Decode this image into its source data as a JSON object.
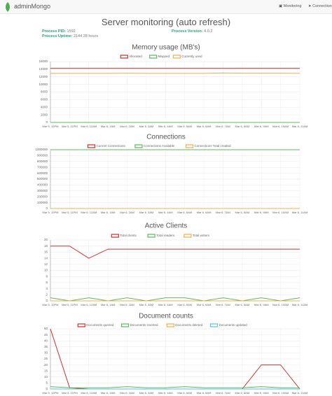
{
  "navbar": {
    "brand": "adminMongo",
    "links": [
      "Monitoring",
      "Connection"
    ]
  },
  "header": {
    "title": "Server monitoring (auto refresh)"
  },
  "process": {
    "pid": {
      "label": "Process PID:",
      "value": "1592"
    },
    "uptime": {
      "label": "Process Uptime:",
      "value": "2144.28 hours"
    },
    "version": {
      "label": "Process Version:",
      "value": "4.0.2"
    }
  },
  "chart_data": [
    {
      "type": "line",
      "title": "Memory usage (MB's)",
      "categories": [
        "Mar 5, 10PM",
        "Mar 5, 11PM",
        "Mar 6, 12AM",
        "Mar 6, 1AM",
        "Mar 6, 2AM",
        "Mar 6, 3AM",
        "Mar 6, 4AM",
        "Mar 6, 5AM",
        "Mar 6, 6AM",
        "Mar 6, 7AM",
        "Mar 6, 8AM",
        "Mar 6, 9AM",
        "Mar 6, 10AM",
        "Mar 6, 11AM"
      ],
      "series": [
        {
          "name": "Allocated",
          "color": "#c9302c",
          "values": [
            14200,
            14200,
            14200,
            14200,
            14200,
            14200,
            14200,
            14200,
            14200,
            14200,
            14200,
            14200,
            14200,
            14200
          ]
        },
        {
          "name": "Mapped",
          "color": "#5cb85c",
          "values": [
            0,
            0,
            0,
            0,
            0,
            0,
            0,
            0,
            0,
            0,
            0,
            0,
            0,
            0
          ]
        },
        {
          "name": "Currently used",
          "color": "#f0ad4e",
          "values": [
            12900,
            12900,
            12900,
            12900,
            12950,
            12900,
            12900,
            12900,
            12900,
            13000,
            12950,
            12950,
            12950,
            12900
          ]
        }
      ],
      "ylim": [
        0,
        16000
      ],
      "yticks": [
        0,
        2000,
        4000,
        6000,
        8000,
        10000,
        12000,
        14000,
        16000
      ],
      "grid": true
    },
    {
      "type": "line",
      "title": "Connections",
      "categories": [
        "Mar 5, 10PM",
        "Mar 5, 11PM",
        "Mar 6, 12AM",
        "Mar 6, 1AM",
        "Mar 6, 2AM",
        "Mar 6, 3AM",
        "Mar 6, 4AM",
        "Mar 6, 5AM",
        "Mar 6, 6AM",
        "Mar 6, 7AM",
        "Mar 6, 8AM",
        "Mar 6, 9AM",
        "Mar 6, 10AM",
        "Mar 6, 11AM"
      ],
      "series": [
        {
          "name": "Current Connections",
          "color": "#c9302c",
          "values": [
            5,
            5,
            5,
            5,
            5,
            5,
            5,
            5,
            5,
            5,
            5,
            5,
            5,
            5
          ]
        },
        {
          "name": "Connections Available",
          "color": "#5cb85c",
          "values": [
            999990,
            999990,
            999990,
            999990,
            999990,
            999990,
            999990,
            999990,
            999990,
            999990,
            999990,
            999990,
            999990,
            999990
          ]
        },
        {
          "name": "Connections Total created",
          "color": "#f0ad4e",
          "values": [
            20,
            20,
            20,
            20,
            20,
            20,
            20,
            20,
            20,
            20,
            20,
            20,
            20,
            20
          ]
        }
      ],
      "ylim": [
        0,
        1000000
      ],
      "yticks": [
        0,
        100000,
        200000,
        300000,
        400000,
        500000,
        600000,
        700000,
        800000,
        900000,
        1000000
      ],
      "grid": true
    },
    {
      "type": "line",
      "title": "Active Clients",
      "categories": [
        "Mar 5, 10PM",
        "Mar 5, 11PM",
        "Mar 6, 12AM",
        "Mar 6, 1AM",
        "Mar 6, 2AM",
        "Mar 6, 3AM",
        "Mar 6, 4AM",
        "Mar 6, 5AM",
        "Mar 6, 6AM",
        "Mar 6, 7AM",
        "Mar 6, 8AM",
        "Mar 6, 9AM",
        "Mar 6, 10AM",
        "Mar 6, 11AM"
      ],
      "series": [
        {
          "name": "Total clients",
          "color": "#c9302c",
          "values": [
            18,
            18,
            14,
            17,
            17,
            17,
            17,
            17,
            17,
            17,
            17,
            17,
            17,
            17
          ]
        },
        {
          "name": "Total readers",
          "color": "#5cb85c",
          "values": [
            1,
            0,
            1,
            0,
            1,
            0,
            1,
            1,
            0,
            1,
            0,
            1,
            0,
            1
          ]
        },
        {
          "name": "Total writers",
          "color": "#f0ad4e",
          "values": [
            0,
            0,
            0,
            0,
            0,
            0,
            0,
            0,
            0,
            0,
            0,
            0,
            0,
            0
          ]
        }
      ],
      "ylim": [
        0,
        20
      ],
      "yticks": [
        0,
        2,
        4,
        6,
        8,
        10,
        12,
        14,
        16,
        18,
        20
      ],
      "grid": true
    },
    {
      "type": "line",
      "title": "Document counts",
      "categories": [
        "Mar 5, 10PM",
        "Mar 5, 11PM",
        "Mar 6, 12AM",
        "Mar 6, 1AM",
        "Mar 6, 2AM",
        "Mar 6, 3AM",
        "Mar 6, 4AM",
        "Mar 6, 5AM",
        "Mar 6, 6AM",
        "Mar 6, 7AM",
        "Mar 6, 8AM",
        "Mar 6, 9AM",
        "Mar 6, 10AM",
        "Mar 6, 11AM"
      ],
      "series": [
        {
          "name": "Documents queried",
          "color": "#c9302c",
          "values": [
            50,
            1,
            0,
            0,
            0,
            0,
            0,
            0,
            0,
            0,
            0,
            20,
            20,
            0
          ]
        },
        {
          "name": "Documents inserted",
          "color": "#5cb85c",
          "values": [
            2,
            1,
            1,
            1,
            2,
            1,
            1,
            2,
            1,
            1,
            1,
            2,
            1,
            1
          ]
        },
        {
          "name": "Documents deleted",
          "color": "#f0ad4e",
          "values": [
            0,
            0,
            0,
            0,
            0,
            0,
            0,
            0,
            0,
            0,
            0,
            0,
            0,
            0
          ]
        },
        {
          "name": "Documents updated",
          "color": "#5bc0de",
          "values": [
            0,
            0,
            0,
            0,
            0,
            0,
            0,
            0,
            0,
            0,
            0,
            0,
            0,
            0
          ]
        }
      ],
      "ylim": [
        0,
        50
      ],
      "yticks": [
        0,
        5,
        10,
        15,
        20,
        25,
        30,
        35,
        40,
        45,
        50
      ],
      "grid": true
    }
  ]
}
